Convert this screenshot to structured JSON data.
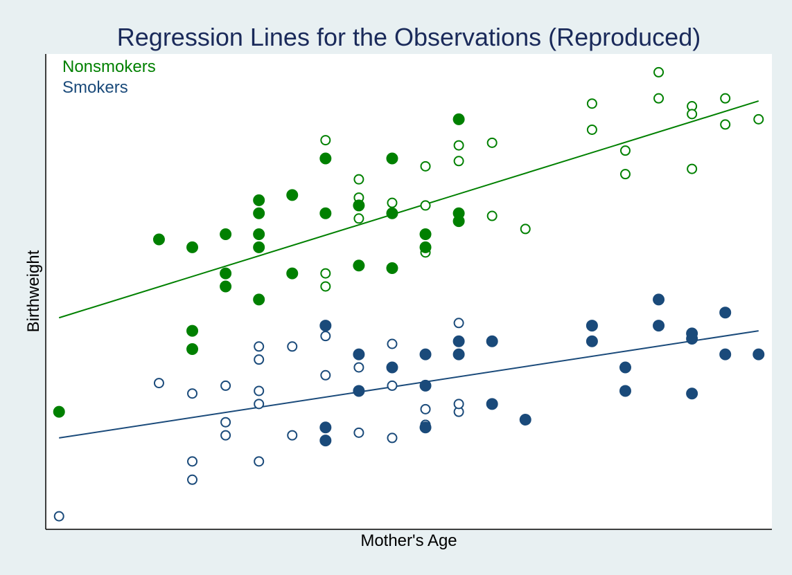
{
  "chart_data": {
    "type": "scatter",
    "title": "Regression Lines for the Observations (Reproduced)",
    "xlabel": "Mother's Age",
    "ylabel": "Birthweight",
    "xlim": [
      14.6,
      36.4
    ],
    "ylim": [
      0.5,
      18.7
    ],
    "grid": false,
    "legend_position": "top-left",
    "legend": [
      {
        "label": "Nonsmokers",
        "color": "#008000"
      },
      {
        "label": "Smokers",
        "color": "#1a4a7a"
      }
    ],
    "series": [
      {
        "name": "Nonsmokers",
        "color": "#008000",
        "filled": [
          [
            15,
            5.0
          ],
          [
            18,
            11.6
          ],
          [
            19,
            11.3
          ],
          [
            19,
            8.1
          ],
          [
            19,
            7.4
          ],
          [
            20,
            11.8
          ],
          [
            20,
            10.3
          ],
          [
            20,
            9.8
          ],
          [
            21,
            13.1
          ],
          [
            21,
            12.6
          ],
          [
            21,
            11.8
          ],
          [
            21,
            11.3
          ],
          [
            21,
            9.3
          ],
          [
            22,
            13.3
          ],
          [
            22,
            10.3
          ],
          [
            23,
            14.7
          ],
          [
            23,
            12.6
          ],
          [
            24,
            12.9
          ],
          [
            24,
            10.6
          ],
          [
            25,
            14.7
          ],
          [
            25,
            12.6
          ],
          [
            25,
            10.5
          ],
          [
            26,
            11.8
          ],
          [
            26,
            11.3
          ],
          [
            27,
            16.2
          ],
          [
            27,
            12.6
          ],
          [
            27,
            12.3
          ]
        ],
        "hollow": [
          [
            23,
            15.4
          ],
          [
            23,
            10.3
          ],
          [
            23,
            9.8
          ],
          [
            24,
            13.9
          ],
          [
            24,
            13.2
          ],
          [
            24,
            12.4
          ],
          [
            25,
            13.0
          ],
          [
            26,
            14.4
          ],
          [
            26,
            12.9
          ],
          [
            26,
            11.1
          ],
          [
            27,
            15.2
          ],
          [
            27,
            14.6
          ],
          [
            28,
            15.3
          ],
          [
            28,
            12.5
          ],
          [
            29,
            12.0
          ],
          [
            31,
            16.8
          ],
          [
            31,
            15.8
          ],
          [
            32,
            15.0
          ],
          [
            32,
            14.1
          ],
          [
            33,
            18.0
          ],
          [
            33,
            17.0
          ],
          [
            34,
            16.7
          ],
          [
            34,
            16.4
          ],
          [
            34,
            14.3
          ],
          [
            35,
            17.0
          ],
          [
            35,
            16.0
          ],
          [
            36,
            16.2
          ]
        ],
        "regression": {
          "x": [
            15,
            36
          ],
          "y": [
            8.6,
            16.9
          ]
        }
      },
      {
        "name": "Smokers",
        "color": "#1a4a7a",
        "filled": [
          [
            23,
            8.3
          ],
          [
            23,
            4.4
          ],
          [
            23,
            3.9
          ],
          [
            24,
            7.2
          ],
          [
            24,
            5.8
          ],
          [
            25,
            6.7
          ],
          [
            26,
            7.2
          ],
          [
            26,
            6.0
          ],
          [
            26,
            4.4
          ],
          [
            27,
            7.7
          ],
          [
            27,
            7.2
          ],
          [
            28,
            7.7
          ],
          [
            28,
            5.3
          ],
          [
            29,
            4.7
          ],
          [
            31,
            8.3
          ],
          [
            31,
            7.7
          ],
          [
            32,
            6.7
          ],
          [
            32,
            5.8
          ],
          [
            33,
            9.3
          ],
          [
            33,
            8.3
          ],
          [
            34,
            8.0
          ],
          [
            34,
            7.8
          ],
          [
            34,
            5.7
          ],
          [
            35,
            8.8
          ],
          [
            35,
            7.2
          ],
          [
            36,
            7.2
          ]
        ],
        "hollow": [
          [
            15,
            1.0
          ],
          [
            18,
            6.1
          ],
          [
            19,
            5.7
          ],
          [
            19,
            3.1
          ],
          [
            19,
            2.4
          ],
          [
            20,
            6.0
          ],
          [
            20,
            4.6
          ],
          [
            20,
            4.1
          ],
          [
            21,
            7.5
          ],
          [
            21,
            7.0
          ],
          [
            21,
            5.8
          ],
          [
            21,
            5.3
          ],
          [
            21,
            3.1
          ],
          [
            22,
            7.5
          ],
          [
            22,
            4.1
          ],
          [
            23,
            7.9
          ],
          [
            23,
            6.4
          ],
          [
            24,
            6.7
          ],
          [
            24,
            4.2
          ],
          [
            25,
            7.6
          ],
          [
            25,
            6.0
          ],
          [
            25,
            4.0
          ],
          [
            26,
            5.1
          ],
          [
            26,
            4.5
          ],
          [
            26,
            4.5
          ],
          [
            27,
            8.4
          ],
          [
            27,
            5.0
          ],
          [
            27,
            5.3
          ]
        ],
        "regression": {
          "x": [
            15,
            36
          ],
          "y": [
            4.0,
            8.1
          ]
        }
      }
    ]
  }
}
